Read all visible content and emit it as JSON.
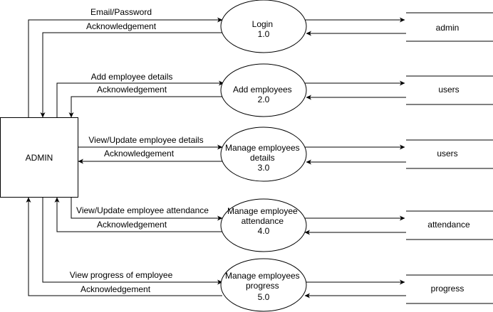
{
  "entity": {
    "label": "ADMIN"
  },
  "processes": [
    {
      "lines": [
        "Login",
        "1.0"
      ]
    },
    {
      "lines": [
        "Add employees",
        "2.0"
      ]
    },
    {
      "lines": [
        "Manage employees",
        "details",
        "3.0"
      ]
    },
    {
      "lines": [
        "Manage employee",
        "attendance",
        "4.0"
      ]
    },
    {
      "lines": [
        "Manage employees",
        "progress",
        "5.0"
      ]
    }
  ],
  "datastores": [
    {
      "label": "admin"
    },
    {
      "label": "users"
    },
    {
      "label": "users"
    },
    {
      "label": "attendance"
    },
    {
      "label": "progress"
    }
  ],
  "flows": [
    {
      "request": "Email/Password",
      "response": "Acknowledgement"
    },
    {
      "request": "Add employee details",
      "response": "Acknowledgement"
    },
    {
      "request": "View/Update employee details",
      "response": "Acknowledgement"
    },
    {
      "request": "View/Update employee attendance",
      "response": "Acknowledgement"
    },
    {
      "request": "View progress of employee",
      "response": "Acknowledgement"
    }
  ]
}
